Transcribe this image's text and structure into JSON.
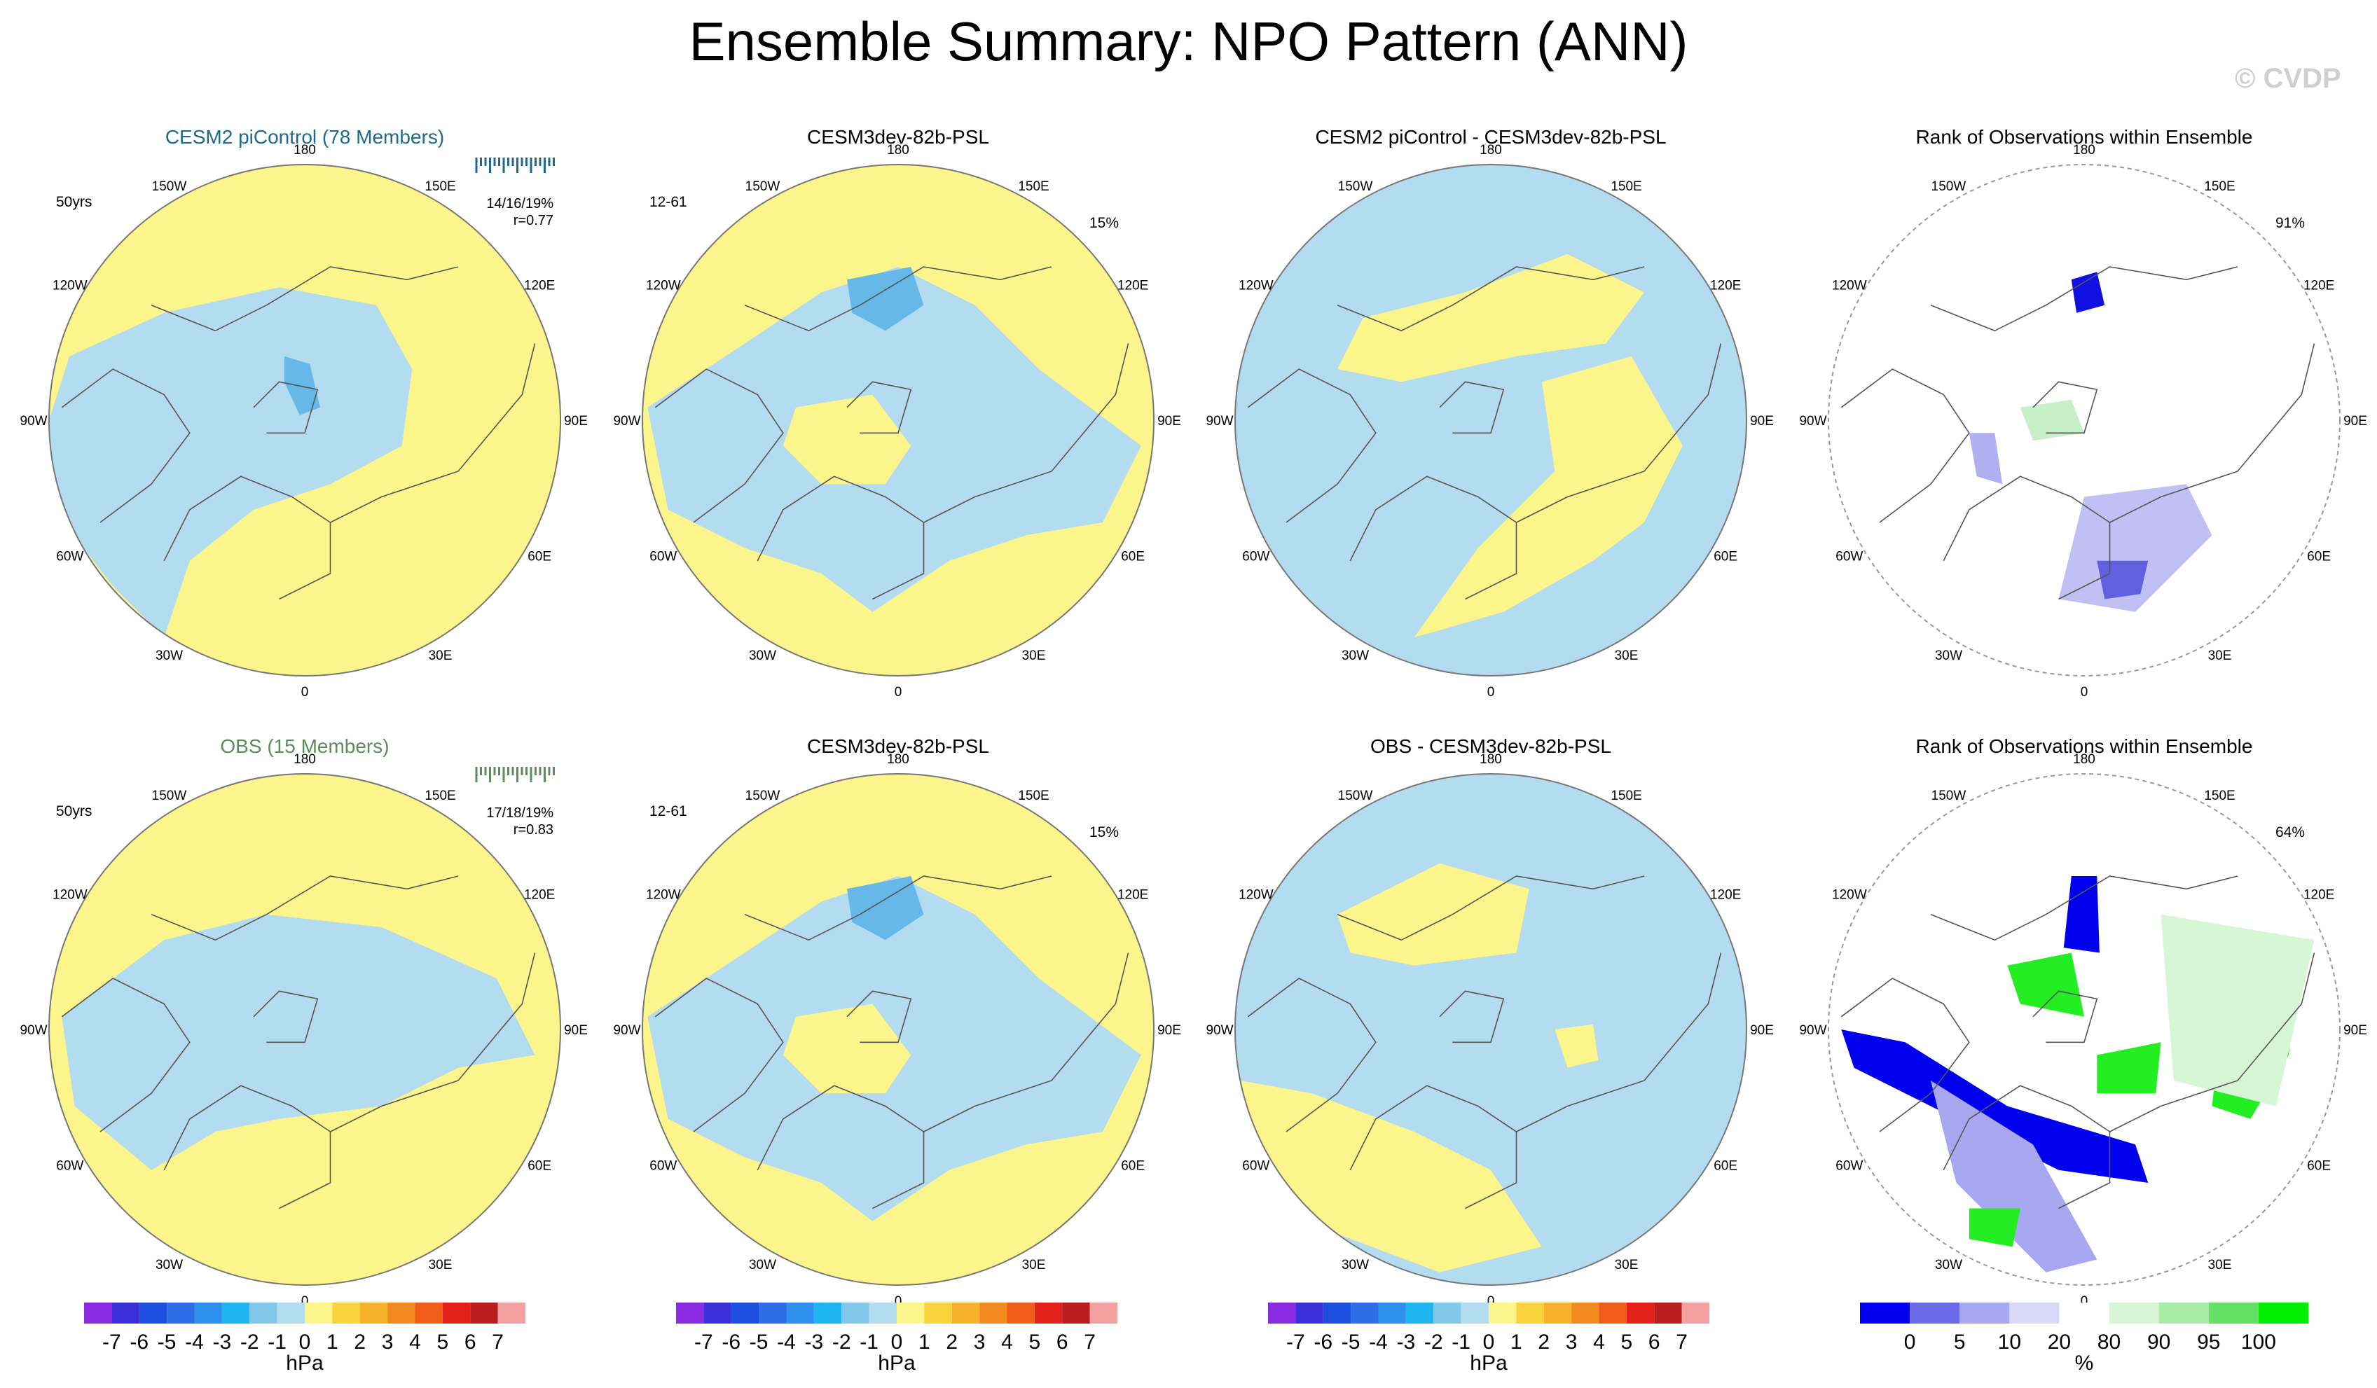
{
  "figure": {
    "title": "Ensemble Summary: NPO Pattern (ANN)",
    "watermark": "© CVDP"
  },
  "lon_labels": [
    "180",
    "150E",
    "120E",
    "90E",
    "60E",
    "30E",
    "0",
    "30W",
    "60W",
    "90W",
    "120W",
    "150W"
  ],
  "colors": {
    "positive_fill": "#fbf58b",
    "negative_fill": "#b4dcf1",
    "strong_negative": "#66b8e8",
    "coast": "#555555",
    "cesm2_title": "#1f6a8c",
    "obs_title": "#5c8b5c"
  },
  "panels": [
    {
      "title": "CESM2 piControl (78 Members)",
      "left_tag": "50yrs",
      "right_tag": "",
      "stats": "14/16/19%",
      "corr": "r=0.77",
      "title_color": "#1f6a8c",
      "kind": "pattern",
      "variant": "a"
    },
    {
      "title": "CESM3dev-82b-PSL",
      "left_tag": "12-61",
      "right_tag": "15%",
      "stats": "",
      "corr": "",
      "title_color": "#000000",
      "kind": "pattern",
      "variant": "b"
    },
    {
      "title": "CESM2 piControl - CESM3dev-82b-PSL",
      "left_tag": "",
      "right_tag": "",
      "stats": "",
      "corr": "",
      "title_color": "#000000",
      "kind": "pattern",
      "variant": "c"
    },
    {
      "title": "Rank of Observations within Ensemble",
      "left_tag": "",
      "right_tag": "91%",
      "stats": "",
      "corr": "",
      "title_color": "#000000",
      "kind": "rank",
      "variant": "r1"
    },
    {
      "title": "OBS (15 Members)",
      "left_tag": "50yrs",
      "right_tag": "",
      "stats": "17/18/19%",
      "corr": "r=0.83",
      "title_color": "#5c8b5c",
      "kind": "pattern",
      "variant": "d"
    },
    {
      "title": "CESM3dev-82b-PSL",
      "left_tag": "12-61",
      "right_tag": "15%",
      "stats": "",
      "corr": "",
      "title_color": "#000000",
      "kind": "pattern",
      "variant": "b"
    },
    {
      "title": "OBS - CESM3dev-82b-PSL",
      "left_tag": "",
      "right_tag": "",
      "stats": "",
      "corr": "",
      "title_color": "#000000",
      "kind": "pattern",
      "variant": "e"
    },
    {
      "title": "Rank of Observations within Ensemble",
      "left_tag": "",
      "right_tag": "64%",
      "stats": "",
      "corr": "",
      "title_color": "#000000",
      "kind": "rank",
      "variant": "r2"
    }
  ],
  "hpa_colorbar": {
    "labels": [
      "-7",
      "-6",
      "-5",
      "-4",
      "-3",
      "-2",
      "-1",
      "0",
      "1",
      "2",
      "3",
      "4",
      "5",
      "6",
      "7"
    ],
    "colors": [
      "#8a2be2",
      "#3a2fd9",
      "#1c4fe0",
      "#2f6ce8",
      "#2e90ee",
      "#1fb5f2",
      "#82c8ec",
      "#b4dcf1",
      "#fbf58b",
      "#f8d33b",
      "#f6b22a",
      "#f38a1f",
      "#ef5d18",
      "#e1211a",
      "#b81c1c",
      "#f4a0a0"
    ],
    "unit": "hPa"
  },
  "rank_colorbar": {
    "labels": [
      "0",
      "5",
      "10",
      "20",
      "80",
      "90",
      "95",
      "100"
    ],
    "colors": [
      "#0000ee",
      "#6a6ae8",
      "#a8a8f0",
      "#d8d8f6",
      "#ffffff",
      "#d6f6d6",
      "#a8eca8",
      "#64e064",
      "#00ee00"
    ],
    "unit": "%"
  }
}
